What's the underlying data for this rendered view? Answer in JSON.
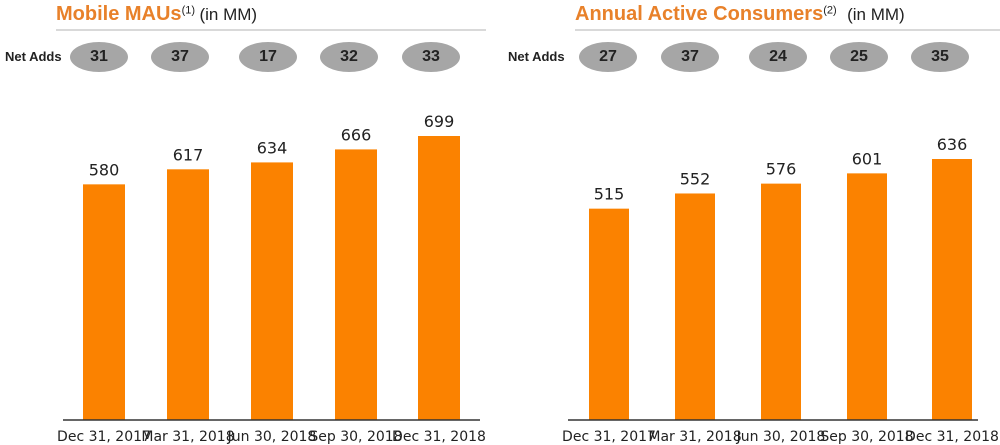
{
  "net_adds_label": "Net Adds",
  "colors": {
    "bar": "#fb8200",
    "title": "#e8812a",
    "pill": "#a6a6a6",
    "axis": "#333333"
  },
  "chart_data": [
    {
      "type": "bar",
      "title": "Mobile MAUs",
      "title_superscript": "(1)",
      "unit": "(in MM)",
      "categories": [
        "Dec 31, 2017",
        "Mar 31, 2018",
        "Jun 30, 2018",
        "Sep 30, 2018",
        "Dec 31, 2018"
      ],
      "values": [
        580,
        617,
        634,
        666,
        699
      ],
      "value_labels": [
        "580",
        "617",
        "634",
        "666",
        "699"
      ],
      "net_adds": [
        "31",
        "37",
        "17",
        "32",
        "33"
      ],
      "xlabel": "",
      "ylabel": "",
      "ylim": [
        0,
        850
      ],
      "grid": false
    },
    {
      "type": "bar",
      "title": "Annual Active Consumers",
      "title_superscript": "(2)",
      "unit": "(in MM)",
      "categories": [
        "Dec 31, 2017",
        "Mar 31, 2018",
        "Jun 30, 2018",
        "Sep 30, 2018",
        "Dec 31, 2018"
      ],
      "values": [
        515,
        552,
        576,
        601,
        636
      ],
      "value_labels": [
        "515",
        "552",
        "576",
        "601",
        "636"
      ],
      "net_adds": [
        "27",
        "37",
        "24",
        "25",
        "35"
      ],
      "xlabel": "",
      "ylabel": "",
      "ylim": [
        0,
        820
      ],
      "grid": false
    }
  ]
}
